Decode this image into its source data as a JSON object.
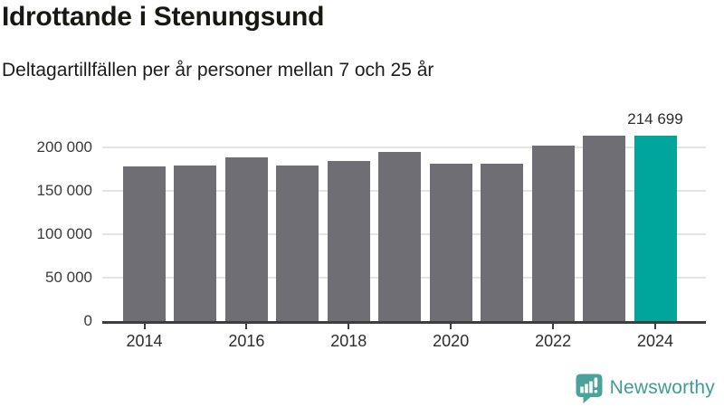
{
  "header": {
    "title": "Idrottande i Stenungsund",
    "subtitle": "Deltagartillfällen per år personer mellan 7 och 25 år"
  },
  "chart_data": {
    "type": "bar",
    "title": "Idrottande i Stenungsund",
    "subtitle": "Deltagartillfällen per år personer mellan 7 och 25 år",
    "categories": [
      "2014",
      "2015",
      "2016",
      "2017",
      "2018",
      "2019",
      "2020",
      "2021",
      "2022",
      "2023",
      "2024"
    ],
    "values": [
      179200,
      180700,
      189700,
      180100,
      185900,
      196300,
      182400,
      182400,
      203200,
      214100,
      214699
    ],
    "highlight_index": 10,
    "data_label": {
      "index": 10,
      "text": "214 699"
    },
    "yticks": [
      {
        "value": 0,
        "label": "0"
      },
      {
        "value": 50000,
        "label": "50 000"
      },
      {
        "value": 100000,
        "label": "100 000"
      },
      {
        "value": 150000,
        "label": "150 000"
      },
      {
        "value": 200000,
        "label": "200 000"
      }
    ],
    "xtick_labels": [
      "2014",
      "2016",
      "2018",
      "2020",
      "2022",
      "2024"
    ],
    "ylim": [
      0,
      230000
    ],
    "grid": "horizontal",
    "legend": "none",
    "colors": {
      "bar": "#6e6e74",
      "highlight": "#00a69c",
      "gridline": "#e4e4e4",
      "axis": "#3e3e3e"
    }
  },
  "footer": {
    "brand": "Newsworthy",
    "brand_color": "#3f9c94",
    "logo_color": "#4aa29b",
    "logo_icon": "newsworthy-speech-bubble-bar-chart-icon"
  }
}
